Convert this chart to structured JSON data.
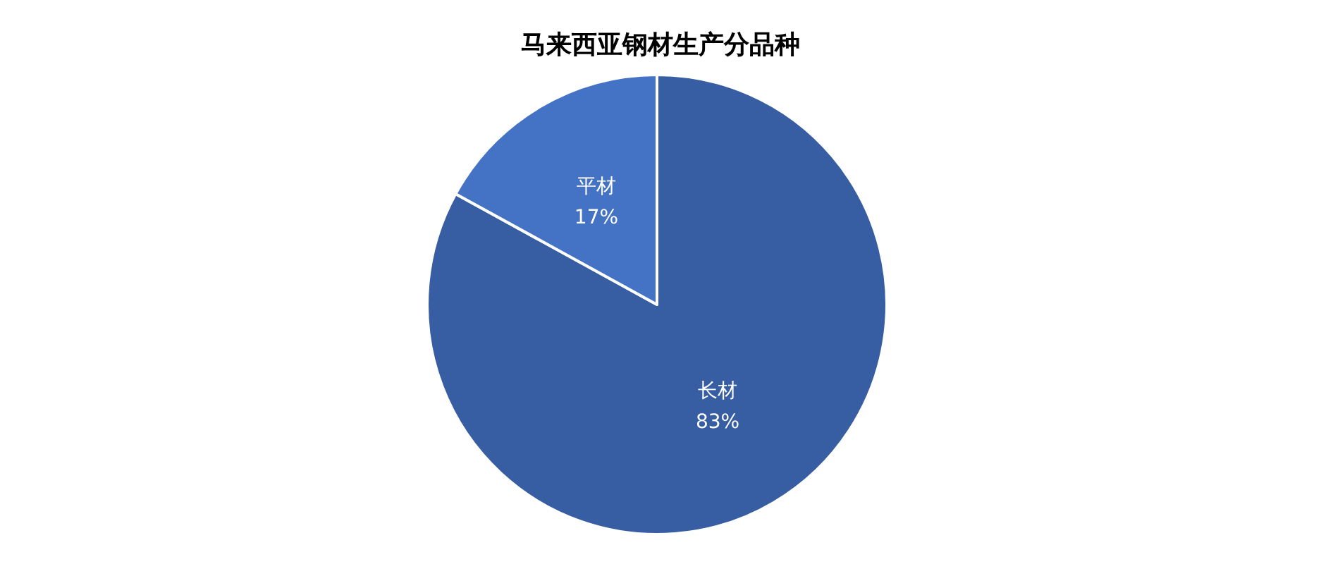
{
  "chart_data": {
    "type": "pie",
    "title": "马来西亚钢材生产分品种",
    "categories": [
      "长材",
      "平材"
    ],
    "values": [
      83,
      17
    ],
    "colors": [
      "#375da3",
      "#4472c4"
    ],
    "value_labels": [
      "83%",
      "17%"
    ],
    "legend": false
  }
}
